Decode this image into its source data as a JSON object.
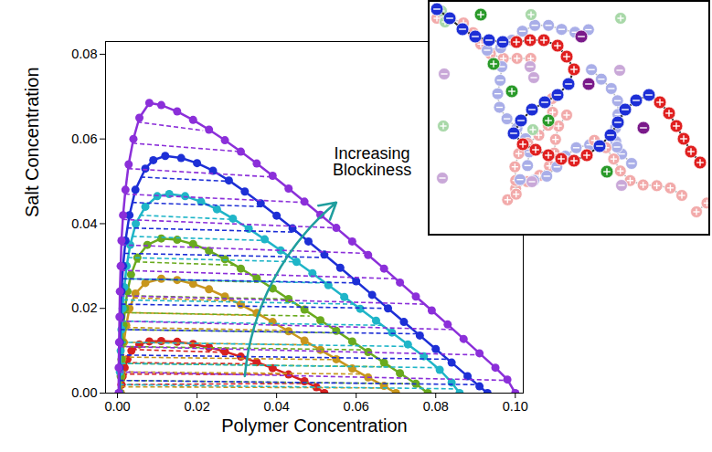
{
  "chart_data": {
    "type": "line",
    "x_label": "Polymer Concentration",
    "y_label": "Salt Concentration",
    "xlim": [
      -0.003,
      0.102
    ],
    "ylim": [
      0,
      0.083
    ],
    "xticks": [
      {
        "value": 0,
        "label": "0.00"
      },
      {
        "value": 0.02,
        "label": "0.02"
      },
      {
        "value": 0.04,
        "label": "0.04"
      },
      {
        "value": 0.06,
        "label": "0.06"
      },
      {
        "value": 0.08,
        "label": "0.08"
      },
      {
        "value": 0.1,
        "label": "0.10"
      }
    ],
    "yticks": [
      {
        "value": 0,
        "label": "0.00"
      },
      {
        "value": 0.02,
        "label": "0.02"
      },
      {
        "value": 0.04,
        "label": "0.04"
      },
      {
        "value": 0.06,
        "label": "0.06"
      },
      {
        "value": 0.08,
        "label": "0.08"
      }
    ],
    "grid": false,
    "annotations": [
      {
        "text": "Increasing Blockiness",
        "x": 0.064,
        "y": 0.0545,
        "color": "#1f9e9e",
        "arrow": {
          "x1": 0.032,
          "y1": 0.004,
          "x2": 0.055,
          "y2": 0.045
        }
      }
    ],
    "series": [
      {
        "color": "#d62020",
        "marker": "circle",
        "line_style": "solid",
        "x": [
          0.0008,
          0.001,
          0.0013,
          0.0018,
          0.0025,
          0.0035,
          0.0055,
          0.008,
          0.011,
          0.015,
          0.019,
          0.023,
          0.027,
          0.031,
          0.035,
          0.039,
          0.043,
          0.047,
          0.05,
          0.052
        ],
        "y": [
          0,
          0.002,
          0.004,
          0.006,
          0.008,
          0.01,
          0.0115,
          0.0122,
          0.0123,
          0.0121,
          0.0116,
          0.0108,
          0.0098,
          0.0086,
          0.0073,
          0.0059,
          0.0044,
          0.0028,
          0.0014,
          0
        ],
        "tie_lines": [
          [
            0.0037,
            0.0103,
            0.028,
            0.0096
          ],
          [
            0.002,
            0.0072,
            0.036,
            0.0069
          ],
          [
            0.0013,
            0.0045,
            0.043,
            0.0044
          ],
          [
            0.0009,
            0.002,
            0.048,
            0.0023
          ]
        ]
      },
      {
        "color": "#c8961c",
        "marker": "circle",
        "line_style": "solid",
        "x": [
          0.0008,
          0.001,
          0.0012,
          0.0016,
          0.0022,
          0.003,
          0.0045,
          0.007,
          0.011,
          0.015,
          0.019,
          0.023,
          0.027,
          0.031,
          0.035,
          0.039,
          0.043,
          0.047,
          0.051,
          0.055,
          0.059,
          0.063,
          0.067,
          0.07
        ],
        "y": [
          0,
          0.004,
          0.008,
          0.012,
          0.016,
          0.02,
          0.0235,
          0.026,
          0.027,
          0.0267,
          0.0258,
          0.0245,
          0.0228,
          0.0209,
          0.0189,
          0.0168,
          0.0146,
          0.0124,
          0.0102,
          0.008,
          0.0058,
          0.0037,
          0.0017,
          0
        ],
        "tie_lines": [
          [
            0.004,
            0.0225,
            0.029,
            0.0218
          ],
          [
            0.0028,
            0.019,
            0.0365,
            0.0183
          ],
          [
            0.0021,
            0.0155,
            0.0426,
            0.0148
          ],
          [
            0.0016,
            0.012,
            0.0488,
            0.0114
          ],
          [
            0.0012,
            0.0085,
            0.0552,
            0.0079
          ],
          [
            0.001,
            0.005,
            0.0617,
            0.0045
          ],
          [
            0.0009,
            0.0015,
            0.068,
            0.0012
          ]
        ]
      },
      {
        "color": "#6aaa1e",
        "marker": "circle",
        "line_style": "solid",
        "x": [
          0.0006,
          0.0008,
          0.001,
          0.0012,
          0.0015,
          0.0019,
          0.0025,
          0.0034,
          0.005,
          0.0075,
          0.011,
          0.015,
          0.019,
          0.023,
          0.027,
          0.031,
          0.035,
          0.039,
          0.043,
          0.047,
          0.051,
          0.055,
          0.059,
          0.063,
          0.067,
          0.071,
          0.075,
          0.078
        ],
        "y": [
          0,
          0.004,
          0.008,
          0.012,
          0.016,
          0.02,
          0.024,
          0.028,
          0.032,
          0.035,
          0.0365,
          0.0362,
          0.0352,
          0.0336,
          0.0316,
          0.0294,
          0.0271,
          0.0247,
          0.0222,
          0.0197,
          0.0172,
          0.0147,
          0.0122,
          0.0097,
          0.0072,
          0.0047,
          0.0022,
          0
        ],
        "tie_lines": [
          [
            0.0045,
            0.031,
            0.0296,
            0.0302
          ],
          [
            0.0031,
            0.027,
            0.0355,
            0.0262
          ],
          [
            0.0023,
            0.023,
            0.043,
            0.0222
          ],
          [
            0.0018,
            0.019,
            0.0483,
            0.0182
          ],
          [
            0.0014,
            0.015,
            0.0558,
            0.0142
          ],
          [
            0.0012,
            0.011,
            0.0625,
            0.0102
          ],
          [
            0.001,
            0.007,
            0.0687,
            0.0062
          ],
          [
            0.0008,
            0.003,
            0.075,
            0.0022
          ]
        ]
      },
      {
        "color": "#1fb5c8",
        "marker": "circle",
        "line_style": "solid",
        "x": [
          0.0005,
          0.0006,
          0.0008,
          0.001,
          0.0013,
          0.0017,
          0.0023,
          0.0032,
          0.0046,
          0.007,
          0.01,
          0.013,
          0.017,
          0.021,
          0.025,
          0.029,
          0.033,
          0.037,
          0.041,
          0.045,
          0.049,
          0.053,
          0.057,
          0.061,
          0.065,
          0.069,
          0.073,
          0.077,
          0.081,
          0.084,
          0.086
        ],
        "y": [
          0,
          0.005,
          0.01,
          0.015,
          0.02,
          0.025,
          0.03,
          0.035,
          0.04,
          0.044,
          0.0465,
          0.047,
          0.0465,
          0.0452,
          0.0434,
          0.0412,
          0.0388,
          0.0363,
          0.0337,
          0.031,
          0.0283,
          0.0255,
          0.0227,
          0.0199,
          0.0171,
          0.0143,
          0.0115,
          0.0087,
          0.0055,
          0.0025,
          0
        ],
        "tie_lines": [
          [
            0.0055,
            0.042,
            0.0292,
            0.041
          ],
          [
            0.0037,
            0.037,
            0.0376,
            0.036
          ],
          [
            0.0026,
            0.032,
            0.045,
            0.031
          ],
          [
            0.0019,
            0.027,
            0.0523,
            0.026
          ],
          [
            0.0015,
            0.022,
            0.0594,
            0.021
          ],
          [
            0.0011,
            0.017,
            0.0666,
            0.016
          ],
          [
            0.0009,
            0.012,
            0.0737,
            0.011
          ],
          [
            0.0007,
            0.007,
            0.0804,
            0.006
          ],
          [
            0.0005,
            0.002,
            0.085,
            0.001
          ]
        ]
      },
      {
        "color": "#1d2fd6",
        "marker": "circle",
        "line_style": "solid",
        "x": [
          0.0004,
          0.0005,
          0.0006,
          0.0008,
          0.001,
          0.0014,
          0.002,
          0.003,
          0.0045,
          0.007,
          0.009,
          0.012,
          0.016,
          0.02,
          0.024,
          0.028,
          0.032,
          0.036,
          0.04,
          0.044,
          0.048,
          0.052,
          0.056,
          0.06,
          0.064,
          0.068,
          0.072,
          0.076,
          0.08,
          0.084,
          0.088,
          0.091,
          0.093
        ],
        "y": [
          0,
          0.006,
          0.012,
          0.018,
          0.024,
          0.03,
          0.036,
          0.042,
          0.048,
          0.053,
          0.055,
          0.056,
          0.0555,
          0.0543,
          0.0525,
          0.0502,
          0.0476,
          0.0448,
          0.0419,
          0.0389,
          0.0358,
          0.0327,
          0.0296,
          0.0264,
          0.0232,
          0.02,
          0.0168,
          0.0136,
          0.0104,
          0.0072,
          0.004,
          0.0016,
          0
        ],
        "tie_lines": [
          [
            0.0058,
            0.051,
            0.0283,
            0.05
          ],
          [
            0.0037,
            0.045,
            0.0373,
            0.044
          ],
          [
            0.0024,
            0.039,
            0.045,
            0.038
          ],
          [
            0.0017,
            0.033,
            0.0527,
            0.032
          ],
          [
            0.0012,
            0.027,
            0.0605,
            0.026
          ],
          [
            0.0009,
            0.021,
            0.068,
            0.02
          ],
          [
            0.0007,
            0.015,
            0.0755,
            0.014
          ],
          [
            0.00055,
            0.009,
            0.083,
            0.008
          ],
          [
            0.00045,
            0.003,
            0.0905,
            0.002
          ]
        ]
      },
      {
        "color": "#8b2fd9",
        "marker": "circle",
        "line_style": "solid",
        "x": [
          0.0003,
          0.0003,
          0.0004,
          0.0005,
          0.0006,
          0.0008,
          0.001,
          0.0014,
          0.002,
          0.0028,
          0.004,
          0.0055,
          0.008,
          0.011,
          0.015,
          0.019,
          0.023,
          0.027,
          0.031,
          0.035,
          0.039,
          0.043,
          0.047,
          0.051,
          0.055,
          0.059,
          0.063,
          0.067,
          0.071,
          0.075,
          0.079,
          0.083,
          0.087,
          0.091,
          0.095,
          0.098,
          0.1
        ],
        "y": [
          0,
          0.006,
          0.012,
          0.018,
          0.024,
          0.03,
          0.036,
          0.042,
          0.048,
          0.054,
          0.06,
          0.065,
          0.0685,
          0.068,
          0.0665,
          0.0645,
          0.0622,
          0.0597,
          0.057,
          0.0542,
          0.0513,
          0.0483,
          0.0452,
          0.0421,
          0.039,
          0.0358,
          0.0326,
          0.0294,
          0.0261,
          0.0228,
          0.0195,
          0.0162,
          0.0128,
          0.0094,
          0.006,
          0.0032,
          0
        ],
        "tie_lines": [
          [
            0.005,
            0.064,
            0.0215,
            0.062
          ],
          [
            0.0038,
            0.059,
            0.031,
            0.057
          ],
          [
            0.0027,
            0.053,
            0.0392,
            0.051
          ],
          [
            0.0019,
            0.047,
            0.047,
            0.045
          ],
          [
            0.0013,
            0.041,
            0.055,
            0.039
          ],
          [
            0.001,
            0.035,
            0.0625,
            0.033
          ],
          [
            0.0008,
            0.029,
            0.07,
            0.027
          ],
          [
            0.0006,
            0.023,
            0.077,
            0.021
          ],
          [
            0.0005,
            0.017,
            0.0845,
            0.015
          ],
          [
            0.0004,
            0.011,
            0.0915,
            0.009
          ],
          [
            0.0003,
            0.005,
            0.0985,
            0.003
          ]
        ]
      }
    ]
  }
}
